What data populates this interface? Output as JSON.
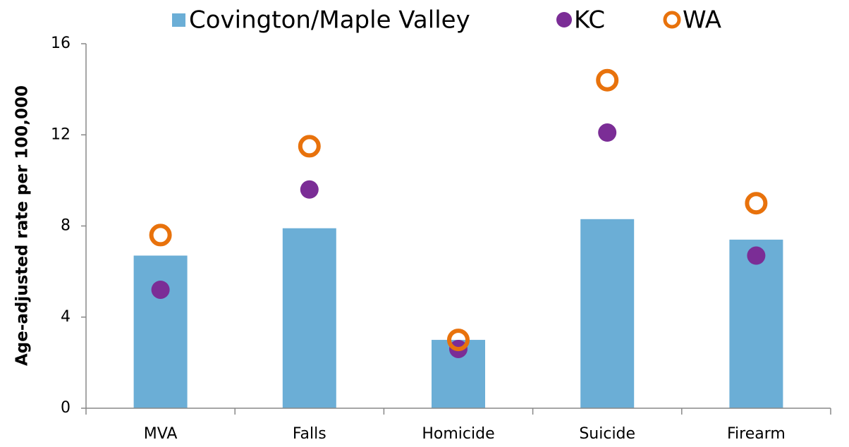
{
  "chart_data": {
    "type": "bar",
    "y_label": "Age-adjusted rate per 100,000",
    "categories": [
      "MVA",
      "Falls",
      "Homicide",
      "Suicide",
      "Firearm"
    ],
    "series": [
      {
        "name": "Covington/Maple Valley",
        "color": "#6baed6",
        "style": "bar",
        "values": [
          6.7,
          7.9,
          3.0,
          8.3,
          7.4
        ]
      },
      {
        "name": "KC",
        "color": "#7b2d96",
        "style": "filled-circle",
        "values": [
          5.2,
          9.6,
          2.6,
          12.1,
          6.7
        ]
      },
      {
        "name": "WA",
        "color": "#e8720c",
        "style": "open-circle",
        "values": [
          7.6,
          11.5,
          3.0,
          14.4,
          9.0
        ]
      }
    ],
    "ylim": [
      0,
      16
    ],
    "yticks": [
      0,
      4,
      8,
      12,
      16
    ],
    "grid": false,
    "legend": "top"
  }
}
